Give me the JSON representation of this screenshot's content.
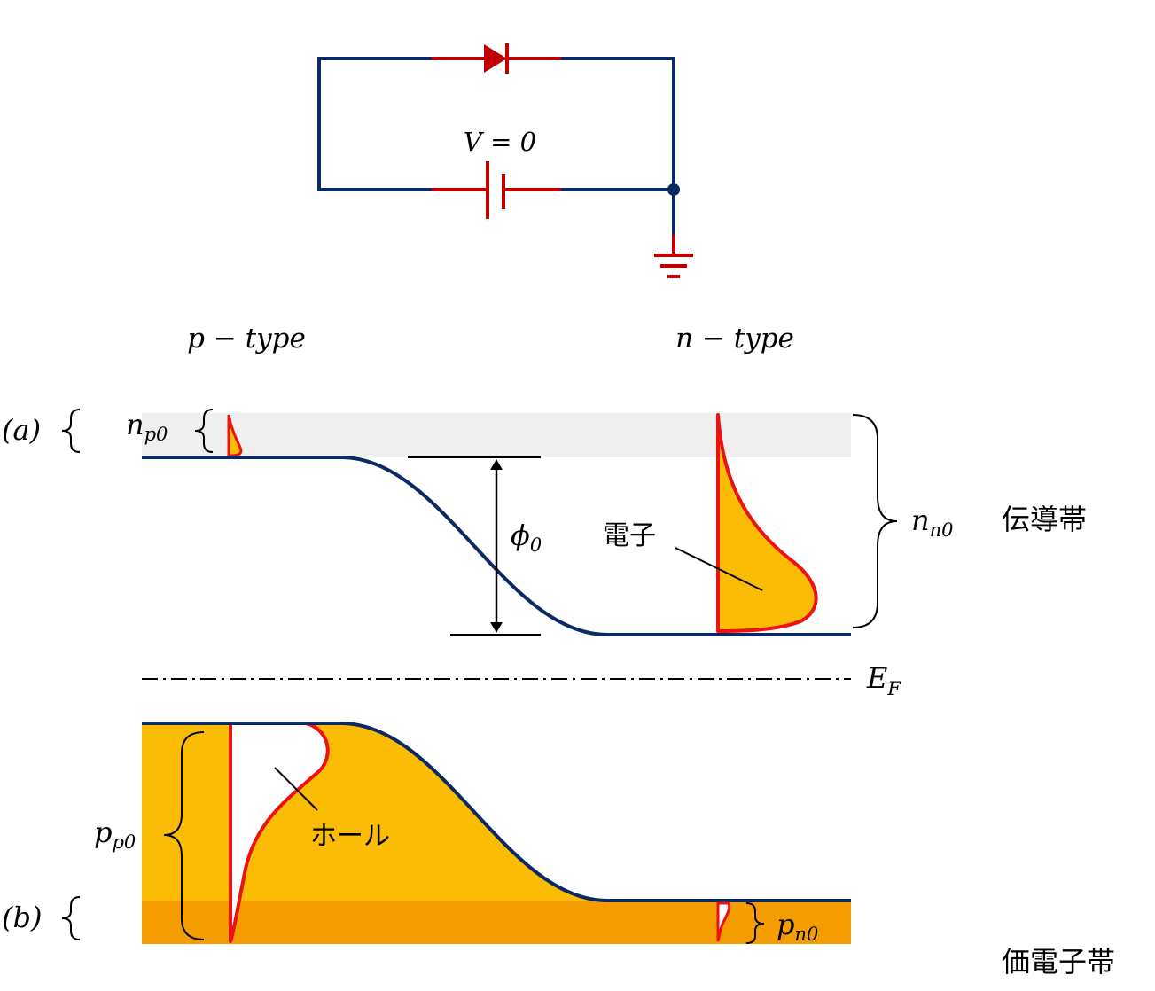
{
  "colors": {
    "wire": "#0b2a63",
    "component": "#c00000",
    "band_line": "#0b2a63",
    "distribution_edge": "#ee1111",
    "fill_yellow": "#fbbc05",
    "fill_orange": "#f59c00",
    "conduction_shade": "#efefef"
  },
  "icons": {
    "diode": "diode-symbol",
    "battery": "battery-symbol",
    "ground": "ground-symbol"
  },
  "circuit": {
    "voltage": "V = 0"
  },
  "regions": {
    "p": "p − type",
    "n": "n − type"
  },
  "labels": {
    "a": "(a)",
    "b": "(b)",
    "np0": "n",
    "np0_sub": "p0",
    "nn0": "n",
    "nn0_sub": "n0",
    "pp0": "p",
    "pp0_sub": "p0",
    "pn0": "p",
    "pn0_sub": "n0",
    "phi0": "ϕ",
    "phi0_sub": "0",
    "ef": "E",
    "ef_sub": "F",
    "electron": "電子",
    "hole": "ホール",
    "conduction_band": "伝導帯",
    "valence_band": "価電子帯"
  }
}
